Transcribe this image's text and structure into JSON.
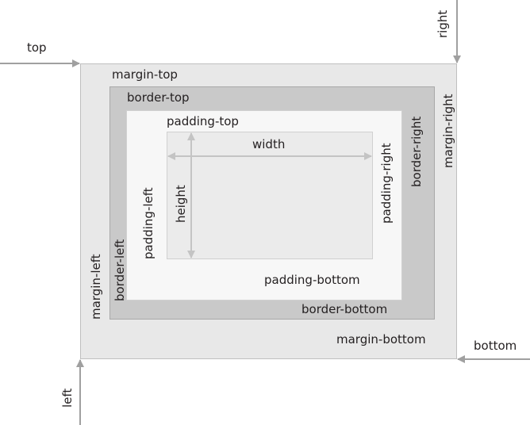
{
  "diagram": {
    "outer_labels": {
      "top": "top",
      "right": "right",
      "bottom": "bottom",
      "left": "left"
    },
    "margin": {
      "top": "margin-top",
      "right": "margin-right",
      "bottom": "margin-bottom",
      "left": "margin-left"
    },
    "border": {
      "top": "border-top",
      "right": "border-right",
      "bottom": "border-bottom",
      "left": "border-left"
    },
    "padding": {
      "top": "padding-top",
      "right": "padding-right",
      "bottom": "padding-bottom",
      "left": "padding-left"
    },
    "content": {
      "width": "width",
      "height": "height"
    },
    "colors": {
      "margin_fill": "#e8e8e8",
      "border_fill": "#c9c9c9",
      "padding_fill": "#f7f7f7",
      "content_fill": "#ebebeb",
      "outer_arrow": "#a0a0a0",
      "dimension_arrow": "#c4c4c4",
      "text": "#231f20"
    }
  }
}
